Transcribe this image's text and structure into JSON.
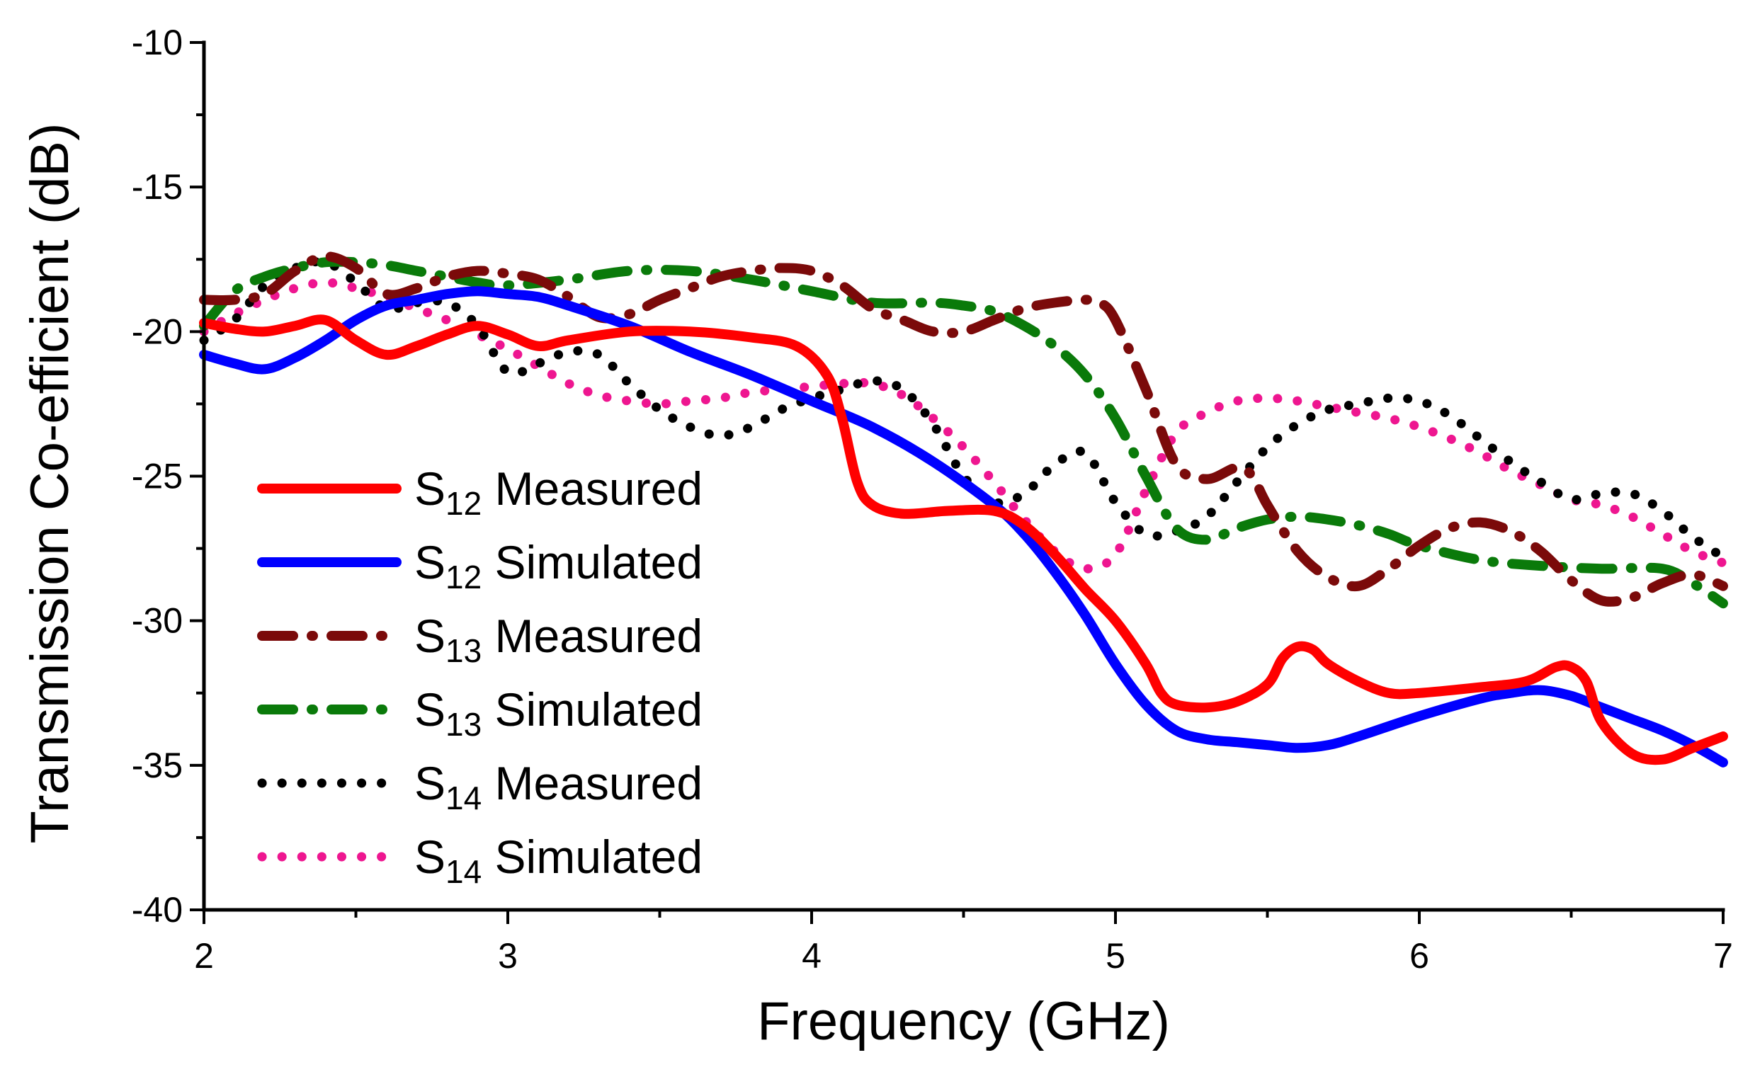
{
  "chart_data": {
    "type": "line",
    "title": "",
    "xlabel": "Frequency (GHz)",
    "ylabel": "Transmission Co-efficient (dB)",
    "xlim": [
      2,
      7
    ],
    "ylim": [
      -40,
      -10
    ],
    "xticks": [
      "2",
      "3",
      "4",
      "5",
      "6",
      "7"
    ],
    "yticks": [
      "-40",
      "-35",
      "-30",
      "-25",
      "-20",
      "-15",
      "-10"
    ],
    "legend_position": "left-middle",
    "series": [
      {
        "name": "S12 Measured",
        "label_base": "S",
        "label_sub": "12",
        "label_rest": "Measured",
        "color": "#ff0000",
        "style": "solid",
        "x": [
          2.0,
          2.1,
          2.2,
          2.3,
          2.4,
          2.5,
          2.6,
          2.7,
          2.8,
          2.9,
          3.0,
          3.1,
          3.2,
          3.4,
          3.6,
          3.8,
          3.95,
          4.05,
          4.1,
          4.15,
          4.2,
          4.3,
          4.45,
          4.6,
          4.7,
          4.8,
          4.9,
          5.0,
          5.1,
          5.15,
          5.2,
          5.3,
          5.4,
          5.5,
          5.55,
          5.6,
          5.65,
          5.7,
          5.8,
          5.9,
          6.0,
          6.2,
          6.35,
          6.45,
          6.5,
          6.55,
          6.6,
          6.7,
          6.8,
          6.9,
          7.0
        ],
        "y": [
          -19.7,
          -19.9,
          -20.0,
          -19.8,
          -19.6,
          -20.3,
          -20.8,
          -20.5,
          -20.1,
          -19.8,
          -20.1,
          -20.5,
          -20.3,
          -20.0,
          -20.0,
          -20.2,
          -20.5,
          -21.5,
          -23.0,
          -25.2,
          -26.0,
          -26.3,
          -26.2,
          -26.2,
          -26.7,
          -27.7,
          -28.9,
          -30.0,
          -31.5,
          -32.5,
          -32.9,
          -33.0,
          -32.8,
          -32.2,
          -31.3,
          -30.9,
          -31.0,
          -31.5,
          -32.1,
          -32.5,
          -32.5,
          -32.3,
          -32.1,
          -31.6,
          -31.6,
          -32.1,
          -33.5,
          -34.6,
          -34.8,
          -34.4,
          -34.0
        ]
      },
      {
        "name": "S12 Simulated",
        "label_base": "S",
        "label_sub": "12",
        "label_rest": "Simulated",
        "color": "#0000ff",
        "style": "solid",
        "x": [
          2.0,
          2.1,
          2.2,
          2.3,
          2.4,
          2.5,
          2.6,
          2.7,
          2.8,
          2.9,
          3.0,
          3.1,
          3.2,
          3.4,
          3.6,
          3.8,
          4.0,
          4.2,
          4.4,
          4.6,
          4.7,
          4.8,
          4.9,
          5.0,
          5.1,
          5.2,
          5.3,
          5.4,
          5.5,
          5.6,
          5.7,
          5.8,
          6.0,
          6.2,
          6.3,
          6.4,
          6.5,
          6.6,
          6.7,
          6.8,
          6.9,
          7.0
        ],
        "y": [
          -20.8,
          -21.1,
          -21.3,
          -20.9,
          -20.3,
          -19.6,
          -19.1,
          -18.9,
          -18.7,
          -18.6,
          -18.7,
          -18.8,
          -19.1,
          -19.8,
          -20.7,
          -21.5,
          -22.4,
          -23.3,
          -24.5,
          -26.0,
          -27.0,
          -28.3,
          -29.8,
          -31.5,
          -32.9,
          -33.8,
          -34.1,
          -34.2,
          -34.3,
          -34.4,
          -34.3,
          -34.0,
          -33.3,
          -32.7,
          -32.5,
          -32.4,
          -32.6,
          -33.0,
          -33.4,
          -33.8,
          -34.3,
          -34.9
        ]
      },
      {
        "name": "S13 Measured",
        "label_base": "S",
        "label_sub": "13",
        "label_rest": "Measured",
        "color": "#7b0a0a",
        "style": "dashdot",
        "x": [
          2.0,
          2.1,
          2.2,
          2.3,
          2.4,
          2.5,
          2.6,
          2.7,
          2.8,
          2.9,
          3.0,
          3.1,
          3.2,
          3.3,
          3.4,
          3.5,
          3.6,
          3.7,
          3.8,
          3.9,
          4.0,
          4.1,
          4.2,
          4.3,
          4.4,
          4.5,
          4.6,
          4.7,
          4.8,
          4.9,
          4.95,
          5.0,
          5.1,
          5.2,
          5.3,
          5.4,
          5.45,
          5.5,
          5.6,
          5.7,
          5.8,
          5.9,
          6.0,
          6.1,
          6.2,
          6.3,
          6.4,
          6.5,
          6.6,
          6.7,
          6.8,
          6.9,
          7.0
        ],
        "y": [
          -18.9,
          -18.9,
          -18.7,
          -17.9,
          -17.4,
          -17.8,
          -18.7,
          -18.5,
          -18.1,
          -17.9,
          -18.0,
          -18.2,
          -18.8,
          -19.5,
          -19.4,
          -18.9,
          -18.5,
          -18.1,
          -17.9,
          -17.8,
          -17.9,
          -18.4,
          -19.2,
          -19.6,
          -20.0,
          -20.0,
          -19.6,
          -19.2,
          -19.0,
          -18.9,
          -19.0,
          -19.6,
          -22.0,
          -24.6,
          -25.1,
          -24.7,
          -25.0,
          -26.0,
          -27.6,
          -28.5,
          -28.8,
          -28.2,
          -27.4,
          -26.8,
          -26.6,
          -26.9,
          -27.6,
          -28.6,
          -29.3,
          -29.2,
          -28.7,
          -28.4,
          -28.8
        ]
      },
      {
        "name": "S13 Simulated",
        "label_base": "S",
        "label_sub": "13",
        "label_rest": "Simulated",
        "color": "#0a7a0a",
        "style": "dashdot",
        "x": [
          2.0,
          2.1,
          2.2,
          2.3,
          2.4,
          2.5,
          2.6,
          2.7,
          2.8,
          2.9,
          3.0,
          3.2,
          3.4,
          3.6,
          3.8,
          4.0,
          4.2,
          4.4,
          4.5,
          4.6,
          4.7,
          4.8,
          4.9,
          5.0,
          5.1,
          5.2,
          5.3,
          5.4,
          5.5,
          5.6,
          5.7,
          5.8,
          5.9,
          6.0,
          6.2,
          6.4,
          6.6,
          6.8,
          6.9,
          7.0
        ],
        "y": [
          -19.8,
          -18.6,
          -18.1,
          -17.8,
          -17.6,
          -17.6,
          -17.7,
          -17.9,
          -18.1,
          -18.3,
          -18.4,
          -18.2,
          -17.9,
          -17.9,
          -18.2,
          -18.6,
          -19.0,
          -19.0,
          -19.1,
          -19.3,
          -19.8,
          -20.5,
          -21.5,
          -23.0,
          -25.0,
          -26.8,
          -27.2,
          -26.8,
          -26.5,
          -26.4,
          -26.5,
          -26.7,
          -27.0,
          -27.4,
          -27.9,
          -28.1,
          -28.2,
          -28.2,
          -28.7,
          -29.4
        ]
      },
      {
        "name": "S14 Measured",
        "label_base": "S",
        "label_sub": "14",
        "label_rest": "Measured",
        "color": "#000000",
        "style": "dot",
        "x": [
          2.0,
          2.1,
          2.2,
          2.3,
          2.4,
          2.5,
          2.6,
          2.7,
          2.8,
          2.9,
          3.0,
          3.1,
          3.2,
          3.3,
          3.4,
          3.5,
          3.6,
          3.7,
          3.8,
          3.9,
          4.0,
          4.1,
          4.2,
          4.3,
          4.4,
          4.5,
          4.6,
          4.7,
          4.8,
          4.9,
          5.0,
          5.1,
          5.2,
          5.3,
          5.4,
          5.5,
          5.6,
          5.7,
          5.8,
          5.9,
          6.0,
          6.1,
          6.2,
          6.3,
          6.4,
          6.5,
          6.6,
          6.7,
          6.8,
          6.9,
          7.0
        ],
        "y": [
          -20.3,
          -19.6,
          -18.4,
          -17.8,
          -17.6,
          -18.3,
          -19.2,
          -19.0,
          -19.0,
          -19.8,
          -21.4,
          -21.1,
          -20.7,
          -20.8,
          -21.8,
          -22.7,
          -23.3,
          -23.6,
          -23.3,
          -22.7,
          -22.3,
          -22.0,
          -21.7,
          -22.0,
          -23.2,
          -25.0,
          -25.9,
          -25.6,
          -24.6,
          -24.2,
          -25.9,
          -27.0,
          -26.9,
          -26.4,
          -25.2,
          -24.0,
          -23.2,
          -22.7,
          -22.5,
          -22.3,
          -22.4,
          -22.9,
          -23.7,
          -24.5,
          -25.2,
          -25.8,
          -25.6,
          -25.6,
          -26.2,
          -27.1,
          -27.8
        ]
      },
      {
        "name": "S14 Simulated",
        "label_base": "S",
        "label_sub": "14",
        "label_rest": "Simulated",
        "color": "#ee1690",
        "style": "dot",
        "x": [
          2.0,
          2.1,
          2.2,
          2.3,
          2.4,
          2.5,
          2.6,
          2.7,
          2.8,
          2.9,
          3.0,
          3.1,
          3.2,
          3.3,
          3.4,
          3.5,
          3.6,
          3.7,
          3.8,
          3.9,
          4.0,
          4.1,
          4.2,
          4.3,
          4.4,
          4.5,
          4.6,
          4.7,
          4.8,
          4.9,
          5.0,
          5.1,
          5.2,
          5.3,
          5.4,
          5.5,
          5.6,
          5.7,
          5.8,
          5.9,
          6.0,
          6.1,
          6.2,
          6.3,
          6.4,
          6.5,
          6.6,
          6.7,
          6.8,
          6.9,
          7.0
        ],
        "y": [
          -20.0,
          -19.4,
          -18.9,
          -18.5,
          -18.3,
          -18.5,
          -18.8,
          -19.2,
          -19.6,
          -20.1,
          -20.6,
          -21.2,
          -21.8,
          -22.2,
          -22.4,
          -22.5,
          -22.4,
          -22.3,
          -22.1,
          -22.0,
          -21.9,
          -21.8,
          -21.8,
          -22.2,
          -23.0,
          -24.0,
          -25.2,
          -26.5,
          -27.6,
          -28.2,
          -27.7,
          -25.5,
          -23.5,
          -22.8,
          -22.4,
          -22.3,
          -22.4,
          -22.6,
          -22.8,
          -23.0,
          -23.3,
          -23.7,
          -24.2,
          -24.8,
          -25.3,
          -25.8,
          -26.0,
          -26.4,
          -27.0,
          -27.6,
          -28.0
        ]
      }
    ]
  }
}
